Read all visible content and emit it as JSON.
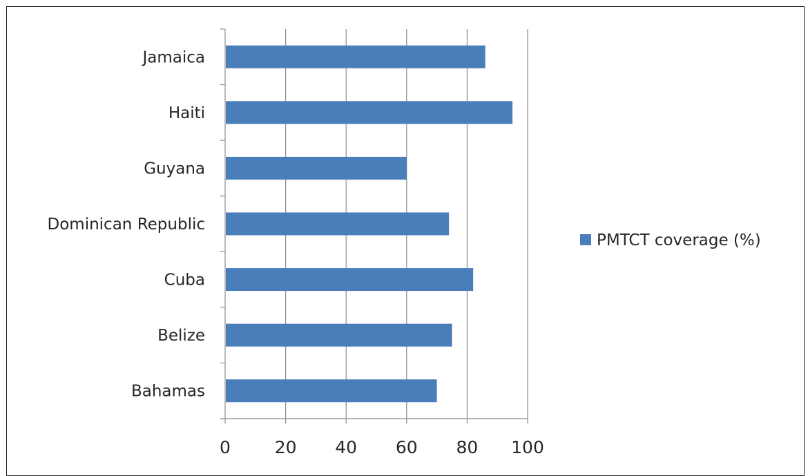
{
  "chart_data": {
    "type": "bar",
    "orientation": "horizontal",
    "categories": [
      "Jamaica",
      "Haiti",
      "Guyana",
      "Dominican Republic",
      "Cuba",
      "Belize",
      "Bahamas"
    ],
    "series": [
      {
        "name": "PMTCT coverage (%)",
        "values": [
          86,
          95,
          60,
          74,
          82,
          75,
          70
        ],
        "color": "#4a7ebb"
      }
    ],
    "xlim": [
      0,
      100
    ],
    "xticks": [
      "0",
      "20",
      "40",
      "60",
      "80",
      "100"
    ],
    "grid": "vertical gridlines on",
    "legend_position": "right"
  }
}
